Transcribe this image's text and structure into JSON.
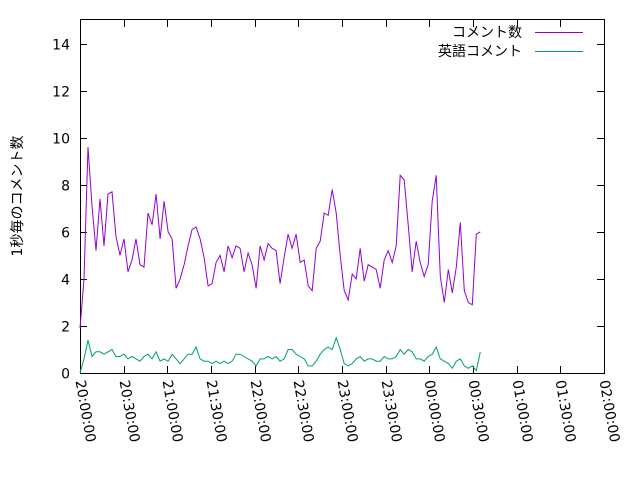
{
  "chart_data": {
    "type": "line",
    "ylabel": "1秒毎のコメント数",
    "xlabel": "",
    "title": "",
    "ylim": [
      0,
      15
    ],
    "yticks": [
      0,
      2,
      4,
      6,
      8,
      10,
      12,
      14
    ],
    "xlim": [
      "20:00:00",
      "02:00:00"
    ],
    "xticks": [
      "20:00:00",
      "20:30:00",
      "21:00:00",
      "21:30:00",
      "22:00:00",
      "22:30:00",
      "23:00:00",
      "23:30:00",
      "00:00:00",
      "00:30:00",
      "01:00:00",
      "01:30:00",
      "02:00:00"
    ],
    "legend_position": "top-right",
    "grid": false,
    "series": [
      {
        "name": "コメント数",
        "color": "#9400d3",
        "points": [
          [
            "20:00:00",
            1.9
          ],
          [
            "20:02:45",
            4.0
          ],
          [
            "20:05:30",
            9.6
          ],
          [
            "20:08:15",
            7.1
          ],
          [
            "20:11:00",
            5.2
          ],
          [
            "20:13:45",
            7.4
          ],
          [
            "20:16:30",
            5.4
          ],
          [
            "20:19:15",
            7.6
          ],
          [
            "20:22:00",
            7.7
          ],
          [
            "20:24:45",
            5.8
          ],
          [
            "20:27:30",
            5.0
          ],
          [
            "20:30:15",
            5.7
          ],
          [
            "20:33:00",
            4.3
          ],
          [
            "20:35:45",
            4.8
          ],
          [
            "20:38:30",
            5.7
          ],
          [
            "20:41:15",
            4.6
          ],
          [
            "20:44:00",
            4.5
          ],
          [
            "20:46:45",
            6.8
          ],
          [
            "20:49:30",
            6.3
          ],
          [
            "20:52:15",
            7.6
          ],
          [
            "20:55:00",
            5.7
          ],
          [
            "20:57:45",
            7.3
          ],
          [
            "21:00:30",
            6.0
          ],
          [
            "21:03:15",
            5.7
          ],
          [
            "21:06:00",
            3.6
          ],
          [
            "21:08:45",
            4.0
          ],
          [
            "21:11:30",
            4.6
          ],
          [
            "21:14:15",
            5.4
          ],
          [
            "21:17:00",
            6.1
          ],
          [
            "21:19:45",
            6.2
          ],
          [
            "21:22:30",
            5.7
          ],
          [
            "21:25:15",
            4.9
          ],
          [
            "21:28:00",
            3.7
          ],
          [
            "21:30:45",
            3.8
          ],
          [
            "21:33:30",
            4.7
          ],
          [
            "21:36:15",
            5.0
          ],
          [
            "21:39:00",
            4.3
          ],
          [
            "21:41:45",
            5.4
          ],
          [
            "21:44:30",
            4.9
          ],
          [
            "21:47:15",
            5.4
          ],
          [
            "21:50:00",
            5.3
          ],
          [
            "21:52:45",
            4.3
          ],
          [
            "21:55:30",
            5.1
          ],
          [
            "21:58:15",
            4.6
          ],
          [
            "22:01:00",
            3.6
          ],
          [
            "22:03:45",
            5.4
          ],
          [
            "22:06:30",
            4.8
          ],
          [
            "22:09:15",
            5.5
          ],
          [
            "22:12:00",
            5.3
          ],
          [
            "22:14:45",
            5.2
          ],
          [
            "22:17:30",
            3.8
          ],
          [
            "22:20:15",
            4.9
          ],
          [
            "22:23:00",
            5.9
          ],
          [
            "22:25:45",
            5.3
          ],
          [
            "22:28:30",
            5.9
          ],
          [
            "22:31:15",
            4.7
          ],
          [
            "22:34:00",
            4.8
          ],
          [
            "22:36:45",
            3.7
          ],
          [
            "22:39:30",
            3.5
          ],
          [
            "22:42:15",
            5.3
          ],
          [
            "22:45:00",
            5.6
          ],
          [
            "22:47:45",
            6.8
          ],
          [
            "22:50:30",
            6.7
          ],
          [
            "22:53:15",
            7.8
          ],
          [
            "22:56:00",
            6.8
          ],
          [
            "22:58:45",
            5.0
          ],
          [
            "23:01:30",
            3.5
          ],
          [
            "23:04:15",
            3.1
          ],
          [
            "23:07:00",
            4.2
          ],
          [
            "23:09:45",
            4.0
          ],
          [
            "23:12:30",
            5.3
          ],
          [
            "23:15:15",
            3.9
          ],
          [
            "23:18:00",
            4.6
          ],
          [
            "23:20:45",
            4.5
          ],
          [
            "23:23:30",
            4.4
          ],
          [
            "23:26:15",
            3.6
          ],
          [
            "23:29:00",
            4.8
          ],
          [
            "23:31:45",
            5.2
          ],
          [
            "23:34:30",
            4.7
          ],
          [
            "23:37:15",
            5.4
          ],
          [
            "23:40:00",
            8.4
          ],
          [
            "23:42:45",
            8.2
          ],
          [
            "23:45:30",
            6.3
          ],
          [
            "23:48:15",
            4.3
          ],
          [
            "23:51:00",
            5.6
          ],
          [
            "23:53:45",
            4.7
          ],
          [
            "23:56:30",
            4.1
          ],
          [
            "23:59:15",
            4.6
          ],
          [
            "00:02:00",
            7.3
          ],
          [
            "00:04:45",
            8.4
          ],
          [
            "00:07:30",
            4.1
          ],
          [
            "00:10:15",
            3.0
          ],
          [
            "00:13:00",
            4.4
          ],
          [
            "00:15:45",
            3.4
          ],
          [
            "00:18:30",
            4.5
          ],
          [
            "00:21:15",
            6.4
          ],
          [
            "00:24:00",
            3.5
          ],
          [
            "00:26:45",
            3.0
          ],
          [
            "00:29:30",
            2.9
          ],
          [
            "00:32:15",
            5.9
          ],
          [
            "00:35:00",
            6.0
          ]
        ]
      },
      {
        "name": "英語コメント",
        "color": "#009e73",
        "points": [
          [
            "20:00:00",
            0.0
          ],
          [
            "20:02:45",
            0.6
          ],
          [
            "20:05:30",
            1.4
          ],
          [
            "20:08:15",
            0.7
          ],
          [
            "20:11:00",
            0.9
          ],
          [
            "20:13:45",
            0.9
          ],
          [
            "20:16:30",
            0.8
          ],
          [
            "20:19:15",
            0.9
          ],
          [
            "20:22:00",
            1.0
          ],
          [
            "20:24:45",
            0.7
          ],
          [
            "20:27:30",
            0.7
          ],
          [
            "20:30:15",
            0.8
          ],
          [
            "20:33:00",
            0.6
          ],
          [
            "20:35:45",
            0.7
          ],
          [
            "20:38:30",
            0.6
          ],
          [
            "20:41:15",
            0.5
          ],
          [
            "20:44:00",
            0.7
          ],
          [
            "20:46:45",
            0.8
          ],
          [
            "20:49:30",
            0.6
          ],
          [
            "20:52:15",
            0.9
          ],
          [
            "20:55:00",
            0.5
          ],
          [
            "20:57:45",
            0.6
          ],
          [
            "21:00:30",
            0.5
          ],
          [
            "21:03:15",
            0.8
          ],
          [
            "21:06:00",
            0.6
          ],
          [
            "21:08:45",
            0.4
          ],
          [
            "21:11:30",
            0.6
          ],
          [
            "21:14:15",
            0.8
          ],
          [
            "21:17:00",
            0.8
          ],
          [
            "21:19:45",
            1.1
          ],
          [
            "21:22:30",
            0.6
          ],
          [
            "21:25:15",
            0.5
          ],
          [
            "21:28:00",
            0.5
          ],
          [
            "21:30:45",
            0.4
          ],
          [
            "21:33:30",
            0.5
          ],
          [
            "21:36:15",
            0.4
          ],
          [
            "21:39:00",
            0.5
          ],
          [
            "21:41:45",
            0.4
          ],
          [
            "21:44:30",
            0.5
          ],
          [
            "21:47:15",
            0.8
          ],
          [
            "21:50:00",
            0.8
          ],
          [
            "21:52:45",
            0.7
          ],
          [
            "21:55:30",
            0.6
          ],
          [
            "21:58:15",
            0.5
          ],
          [
            "22:01:00",
            0.3
          ],
          [
            "22:03:45",
            0.6
          ],
          [
            "22:06:30",
            0.6
          ],
          [
            "22:09:15",
            0.7
          ],
          [
            "22:12:00",
            0.6
          ],
          [
            "22:14:45",
            0.7
          ],
          [
            "22:17:30",
            0.5
          ],
          [
            "22:20:15",
            0.6
          ],
          [
            "22:23:00",
            1.0
          ],
          [
            "22:25:45",
            1.0
          ],
          [
            "22:28:30",
            0.8
          ],
          [
            "22:31:15",
            0.7
          ],
          [
            "22:34:00",
            0.6
          ],
          [
            "22:36:45",
            0.3
          ],
          [
            "22:39:30",
            0.3
          ],
          [
            "22:42:15",
            0.5
          ],
          [
            "22:45:00",
            0.8
          ],
          [
            "22:47:45",
            1.0
          ],
          [
            "22:50:30",
            1.1
          ],
          [
            "22:53:15",
            1.0
          ],
          [
            "22:56:00",
            1.5
          ],
          [
            "22:58:45",
            1.0
          ],
          [
            "23:01:30",
            0.4
          ],
          [
            "23:04:15",
            0.3
          ],
          [
            "23:07:00",
            0.4
          ],
          [
            "23:09:45",
            0.6
          ],
          [
            "23:12:30",
            0.7
          ],
          [
            "23:15:15",
            0.5
          ],
          [
            "23:18:00",
            0.6
          ],
          [
            "23:20:45",
            0.6
          ],
          [
            "23:23:30",
            0.5
          ],
          [
            "23:26:15",
            0.5
          ],
          [
            "23:29:00",
            0.7
          ],
          [
            "23:31:45",
            0.6
          ],
          [
            "23:34:30",
            0.6
          ],
          [
            "23:37:15",
            0.7
          ],
          [
            "23:40:00",
            1.0
          ],
          [
            "23:42:45",
            0.8
          ],
          [
            "23:45:30",
            1.0
          ],
          [
            "23:48:15",
            0.9
          ],
          [
            "23:51:00",
            0.6
          ],
          [
            "23:53:45",
            0.6
          ],
          [
            "23:56:30",
            0.5
          ],
          [
            "23:59:15",
            0.7
          ],
          [
            "00:02:00",
            0.8
          ],
          [
            "00:04:45",
            1.1
          ],
          [
            "00:07:30",
            0.6
          ],
          [
            "00:10:15",
            0.5
          ],
          [
            "00:13:00",
            0.4
          ],
          [
            "00:15:45",
            0.2
          ],
          [
            "00:18:30",
            0.5
          ],
          [
            "00:21:15",
            0.6
          ],
          [
            "00:24:00",
            0.3
          ],
          [
            "00:26:45",
            0.2
          ],
          [
            "00:29:30",
            0.3
          ],
          [
            "00:32:15",
            0.1
          ],
          [
            "00:35:00",
            0.9
          ]
        ]
      }
    ]
  }
}
